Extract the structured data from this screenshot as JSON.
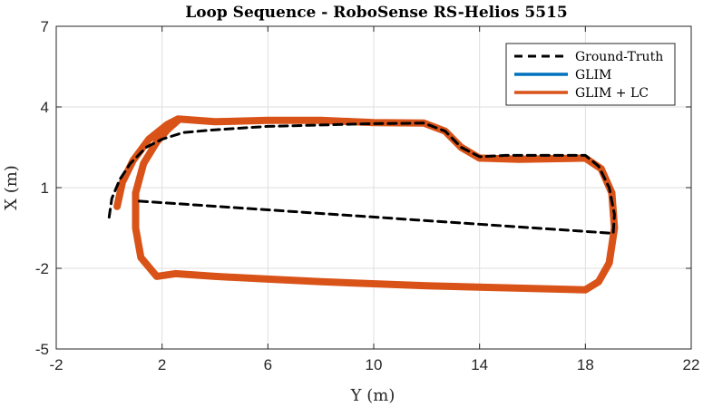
{
  "chart_data": {
    "type": "line",
    "title": "Loop Sequence - RoboSense RS-Helios 5515",
    "xlabel": "Y (m)",
    "ylabel": "X (m)",
    "xlim": [
      -2,
      22
    ],
    "ylim": [
      -5,
      7
    ],
    "xticks": [
      -2,
      2,
      6,
      10,
      14,
      18,
      22
    ],
    "yticks": [
      -5,
      -2,
      1,
      4,
      7
    ],
    "grid": true,
    "legend_position": "top-right",
    "series": [
      {
        "name": "Ground-Truth",
        "color": "#000000",
        "style": "dashed",
        "points": [
          [
            0.0,
            -0.1
          ],
          [
            0.1,
            0.6
          ],
          [
            0.4,
            1.3
          ],
          [
            0.8,
            1.9
          ],
          [
            1.4,
            2.5
          ],
          [
            2.0,
            2.8
          ],
          [
            2.8,
            3.05
          ],
          [
            4.0,
            3.15
          ],
          [
            6.0,
            3.28
          ],
          [
            8.0,
            3.33
          ],
          [
            10.0,
            3.38
          ],
          [
            11.9,
            3.4
          ],
          [
            12.7,
            3.1
          ],
          [
            13.3,
            2.5
          ],
          [
            14.0,
            2.15
          ],
          [
            15.0,
            2.2
          ],
          [
            16.5,
            2.2
          ],
          [
            18.0,
            2.2
          ],
          [
            18.5,
            1.8
          ],
          [
            18.9,
            1.0
          ],
          [
            19.1,
            0.0
          ],
          [
            19.05,
            -0.7
          ],
          [
            1.1,
            0.5
          ]
        ]
      },
      {
        "name": "GLIM",
        "color": "#0072bd",
        "style": "solid",
        "points": [
          [
            0.3,
            0.3
          ],
          [
            0.5,
            1.2
          ],
          [
            0.9,
            2.0
          ],
          [
            1.5,
            2.8
          ],
          [
            2.2,
            3.35
          ],
          [
            2.6,
            3.55
          ],
          [
            4.0,
            3.45
          ],
          [
            6.0,
            3.5
          ],
          [
            8.0,
            3.5
          ],
          [
            10.0,
            3.42
          ],
          [
            11.9,
            3.4
          ],
          [
            12.7,
            3.1
          ],
          [
            13.3,
            2.5
          ],
          [
            14.0,
            2.1
          ],
          [
            15.5,
            2.05
          ],
          [
            18.0,
            2.1
          ],
          [
            18.6,
            1.7
          ],
          [
            19.0,
            0.8
          ],
          [
            19.1,
            -0.5
          ],
          [
            18.9,
            -1.8
          ],
          [
            18.5,
            -2.5
          ],
          [
            18.0,
            -2.8
          ],
          [
            16.0,
            -2.75
          ],
          [
            12.0,
            -2.65
          ],
          [
            8.0,
            -2.5
          ],
          [
            6.0,
            -2.4
          ],
          [
            4.0,
            -2.3
          ],
          [
            2.5,
            -2.2
          ],
          [
            1.8,
            -2.3
          ],
          [
            1.2,
            -1.6
          ],
          [
            1.0,
            -0.5
          ],
          [
            1.0,
            0.8
          ],
          [
            1.3,
            1.9
          ],
          [
            1.8,
            2.7
          ],
          [
            2.2,
            3.15
          ],
          [
            2.6,
            3.5
          ]
        ]
      },
      {
        "name": "GLIM + LC",
        "color": "#d95319",
        "style": "solid",
        "points": [
          [
            0.3,
            0.3
          ],
          [
            0.5,
            1.2
          ],
          [
            0.9,
            2.0
          ],
          [
            1.5,
            2.8
          ],
          [
            2.2,
            3.35
          ],
          [
            2.6,
            3.55
          ],
          [
            4.0,
            3.45
          ],
          [
            6.0,
            3.5
          ],
          [
            8.0,
            3.5
          ],
          [
            10.0,
            3.42
          ],
          [
            11.9,
            3.4
          ],
          [
            12.7,
            3.1
          ],
          [
            13.3,
            2.5
          ],
          [
            14.0,
            2.1
          ],
          [
            15.5,
            2.05
          ],
          [
            18.0,
            2.1
          ],
          [
            18.6,
            1.7
          ],
          [
            19.0,
            0.8
          ],
          [
            19.1,
            -0.5
          ],
          [
            18.9,
            -1.8
          ],
          [
            18.5,
            -2.5
          ],
          [
            18.0,
            -2.8
          ],
          [
            16.0,
            -2.75
          ],
          [
            12.0,
            -2.65
          ],
          [
            8.0,
            -2.5
          ],
          [
            6.0,
            -2.4
          ],
          [
            4.0,
            -2.3
          ],
          [
            2.5,
            -2.2
          ],
          [
            1.8,
            -2.3
          ],
          [
            1.2,
            -1.6
          ],
          [
            1.0,
            -0.5
          ],
          [
            1.0,
            0.8
          ],
          [
            1.3,
            1.9
          ],
          [
            1.8,
            2.7
          ],
          [
            2.2,
            3.15
          ],
          [
            2.6,
            3.5
          ]
        ]
      }
    ]
  }
}
